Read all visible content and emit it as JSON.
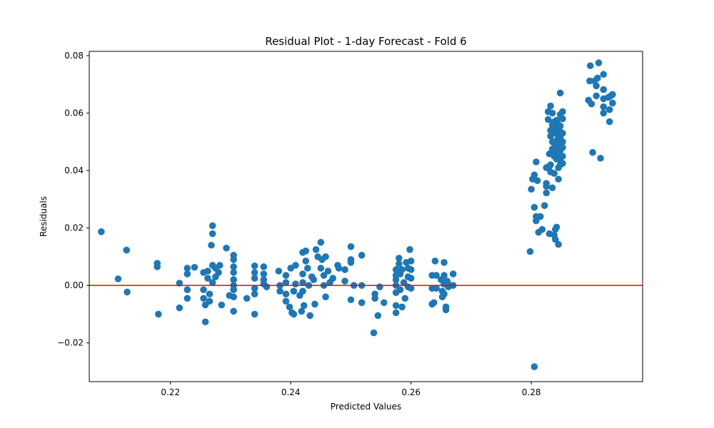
{
  "chart_data": {
    "type": "scatter",
    "title": "Residual Plot - 1-day Forecast - Fold 6",
    "xlabel": "Predicted Values",
    "ylabel": "Residuals",
    "xlim": [
      0.2065,
      0.2985
    ],
    "ylim": [
      -0.0335,
      0.0815
    ],
    "xticks": [
      0.22,
      0.24,
      0.26,
      0.28
    ],
    "yticks": [
      -0.02,
      0.0,
      0.02,
      0.04,
      0.06,
      0.08
    ],
    "grid": false,
    "reference_line": {
      "y": 0.0,
      "color": "#ff0000"
    },
    "marker_color": "#1f77b4",
    "points": [
      [
        0.2085,
        0.0187
      ],
      [
        0.2113,
        0.0023
      ],
      [
        0.2127,
        0.0123
      ],
      [
        0.2128,
        -0.0023
      ],
      [
        0.2178,
        0.0077
      ],
      [
        0.2178,
        0.0065
      ],
      [
        0.218,
        -0.01
      ],
      [
        0.2215,
        0.0008
      ],
      [
        0.2215,
        -0.0078
      ],
      [
        0.2228,
        0.006
      ],
      [
        0.2228,
        0.004
      ],
      [
        0.2228,
        -0.0015
      ],
      [
        0.2228,
        -0.0045
      ],
      [
        0.224,
        0.0063
      ],
      [
        0.2255,
        0.0045
      ],
      [
        0.2255,
        -0.0015
      ],
      [
        0.2255,
        -0.0045
      ],
      [
        0.2258,
        -0.0068
      ],
      [
        0.2258,
        -0.0127
      ],
      [
        0.2262,
        0.005
      ],
      [
        0.2262,
        0.0025
      ],
      [
        0.2265,
        -0.0055
      ],
      [
        0.2265,
        -0.003
      ],
      [
        0.2268,
        0.014
      ],
      [
        0.227,
        0.0208
      ],
      [
        0.227,
        0.018
      ],
      [
        0.227,
        0.007
      ],
      [
        0.227,
        0.001
      ],
      [
        0.2275,
        0.006
      ],
      [
        0.2275,
        0.003
      ],
      [
        0.228,
        0.0045
      ],
      [
        0.2282,
        0.007
      ],
      [
        0.2285,
        -0.0068
      ],
      [
        0.2293,
        0.013
      ],
      [
        0.2298,
        -0.0035
      ],
      [
        0.2305,
        0.0105
      ],
      [
        0.2305,
        0.009
      ],
      [
        0.2305,
        0.0065
      ],
      [
        0.2305,
        0.0045
      ],
      [
        0.2305,
        0.002
      ],
      [
        0.2305,
        0.0
      ],
      [
        0.2305,
        -0.0015
      ],
      [
        0.2305,
        -0.004
      ],
      [
        0.2305,
        -0.009
      ],
      [
        0.2327,
        -0.0045
      ],
      [
        0.234,
        0.0068
      ],
      [
        0.234,
        0.0045
      ],
      [
        0.234,
        0.0025
      ],
      [
        0.234,
        -0.001
      ],
      [
        0.234,
        -0.003
      ],
      [
        0.234,
        -0.01
      ],
      [
        0.2355,
        0.0065
      ],
      [
        0.2355,
        0.004
      ],
      [
        0.2355,
        0.002
      ],
      [
        0.2355,
        0.0005
      ],
      [
        0.236,
        -0.0005
      ],
      [
        0.238,
        0.005
      ],
      [
        0.2382,
        0.0
      ],
      [
        0.2382,
        -0.002
      ],
      [
        0.2392,
        0.0035
      ],
      [
        0.2392,
        0.001
      ],
      [
        0.2392,
        -0.003
      ],
      [
        0.2392,
        -0.0055
      ],
      [
        0.2398,
        -0.0075
      ],
      [
        0.24,
        0.006
      ],
      [
        0.2402,
        -0.0095
      ],
      [
        0.2405,
        -0.01
      ],
      [
        0.2405,
        -0.002
      ],
      [
        0.2408,
        0.007
      ],
      [
        0.2408,
        0.0005
      ],
      [
        0.2415,
        -0.0035
      ],
      [
        0.2418,
        -0.009
      ],
      [
        0.242,
        0.0115
      ],
      [
        0.242,
        0.004
      ],
      [
        0.242,
        0.001
      ],
      [
        0.242,
        -0.002
      ],
      [
        0.2422,
        -0.007
      ],
      [
        0.2425,
        0.012
      ],
      [
        0.2425,
        0.0085
      ],
      [
        0.2428,
        0.006
      ],
      [
        0.243,
        0.0
      ],
      [
        0.2432,
        -0.0105
      ],
      [
        0.2435,
        0.003
      ],
      [
        0.2438,
        0.002
      ],
      [
        0.244,
        -0.0065
      ],
      [
        0.2442,
        0.0125
      ],
      [
        0.2445,
        0.01
      ],
      [
        0.245,
        0.015
      ],
      [
        0.245,
        0.006
      ],
      [
        0.2452,
        0.009
      ],
      [
        0.2455,
        0.0035
      ],
      [
        0.2455,
        0.0
      ],
      [
        0.2458,
        0.01
      ],
      [
        0.2458,
        -0.004
      ],
      [
        0.2462,
        0.005
      ],
      [
        0.2465,
        0.001
      ],
      [
        0.247,
        0.0025
      ],
      [
        0.2478,
        0.007
      ],
      [
        0.248,
        0.006
      ],
      [
        0.249,
        0.0055
      ],
      [
        0.249,
        0.0015
      ],
      [
        0.25,
        0.0135
      ],
      [
        0.25,
        0.009
      ],
      [
        0.25,
        0.008
      ],
      [
        0.25,
        -0.005
      ],
      [
        0.2505,
        0.0
      ],
      [
        0.2518,
        0.0105
      ],
      [
        0.2518,
        0.0
      ],
      [
        0.2518,
        -0.006
      ],
      [
        0.2538,
        -0.0165
      ],
      [
        0.254,
        -0.003
      ],
      [
        0.254,
        -0.0045
      ],
      [
        0.2545,
        -0.0105
      ],
      [
        0.2548,
        -0.0005
      ],
      [
        0.2555,
        -0.006
      ],
      [
        0.2575,
        0.0055
      ],
      [
        0.2575,
        0.0035
      ],
      [
        0.2575,
        0.002
      ],
      [
        0.2575,
        0.0
      ],
      [
        0.2575,
        -0.0025
      ],
      [
        0.2575,
        -0.007
      ],
      [
        0.2575,
        -0.0095
      ],
      [
        0.258,
        0.0095
      ],
      [
        0.258,
        0.0075
      ],
      [
        0.2582,
        0.004
      ],
      [
        0.2582,
        -0.0015
      ],
      [
        0.2585,
        0.0055
      ],
      [
        0.2585,
        -0.0075
      ],
      [
        0.2588,
        0.001
      ],
      [
        0.259,
        -0.0045
      ],
      [
        0.2592,
        0.008
      ],
      [
        0.2595,
        0.006
      ],
      [
        0.2595,
        0.003
      ],
      [
        0.2595,
        -0.0005
      ],
      [
        0.2598,
        0.0125
      ],
      [
        0.26,
        0.0085
      ],
      [
        0.26,
        0.0055
      ],
      [
        0.26,
        0.0025
      ],
      [
        0.26,
        -0.001
      ],
      [
        0.2635,
        0.0035
      ],
      [
        0.2635,
        -0.001
      ],
      [
        0.2635,
        -0.0065
      ],
      [
        0.2638,
        -0.006
      ],
      [
        0.264,
        0.0085
      ],
      [
        0.2642,
        0.0035
      ],
      [
        0.2642,
        -0.001
      ],
      [
        0.265,
        0.002
      ],
      [
        0.2652,
        -0.002
      ],
      [
        0.2652,
        -0.004
      ],
      [
        0.2655,
        0.008
      ],
      [
        0.2655,
        0.0035
      ],
      [
        0.2655,
        0.0005
      ],
      [
        0.2655,
        -0.003
      ],
      [
        0.2658,
        -0.0075
      ],
      [
        0.2658,
        -0.0085
      ],
      [
        0.266,
        0.0015
      ],
      [
        0.2662,
        -0.0005
      ],
      [
        0.2665,
        0.0
      ],
      [
        0.267,
        0.004
      ],
      [
        0.267,
        0.0
      ],
      [
        0.2798,
        0.0118
      ],
      [
        0.28,
        0.0335
      ],
      [
        0.2802,
        0.037
      ],
      [
        0.2805,
        0.0385
      ],
      [
        0.2805,
        0.0272
      ],
      [
        0.2805,
        -0.0283
      ],
      [
        0.2808,
        0.043
      ],
      [
        0.2808,
        0.024
      ],
      [
        0.2808,
        0.0225
      ],
      [
        0.281,
        0.0365
      ],
      [
        0.2812,
        0.0185
      ],
      [
        0.2815,
        0.024
      ],
      [
        0.2818,
        0.0195
      ],
      [
        0.2822,
        0.0278
      ],
      [
        0.2825,
        0.041
      ],
      [
        0.2825,
        0.0355
      ],
      [
        0.2825,
        0.0345
      ],
      [
        0.2825,
        0.0322
      ],
      [
        0.2828,
        0.0605
      ],
      [
        0.2828,
        0.0578
      ],
      [
        0.283,
        0.0458
      ],
      [
        0.283,
        0.0415
      ],
      [
        0.283,
        0.018
      ],
      [
        0.2832,
        0.0625
      ],
      [
        0.2832,
        0.054
      ],
      [
        0.2832,
        0.052
      ],
      [
        0.2832,
        0.042
      ],
      [
        0.2832,
        0.0395
      ],
      [
        0.2835,
        0.06
      ],
      [
        0.2835,
        0.056
      ],
      [
        0.2835,
        0.05
      ],
      [
        0.2835,
        0.0475
      ],
      [
        0.2835,
        0.034
      ],
      [
        0.2838,
        0.057
      ],
      [
        0.2838,
        0.055
      ],
      [
        0.2838,
        0.045
      ],
      [
        0.2838,
        0.039
      ],
      [
        0.2838,
        0.0175
      ],
      [
        0.284,
        0.053
      ],
      [
        0.284,
        0.0485
      ],
      [
        0.284,
        0.0465
      ],
      [
        0.284,
        0.016
      ],
      [
        0.284,
        0.0195
      ],
      [
        0.2842,
        0.0575
      ],
      [
        0.2842,
        0.0545
      ],
      [
        0.2842,
        0.0505
      ],
      [
        0.2842,
        0.044
      ],
      [
        0.2842,
        0.0203
      ],
      [
        0.2845,
        0.056
      ],
      [
        0.2845,
        0.052
      ],
      [
        0.2845,
        0.049
      ],
      [
        0.2845,
        0.046
      ],
      [
        0.2845,
        0.041
      ],
      [
        0.2845,
        0.037
      ],
      [
        0.2845,
        0.0143
      ],
      [
        0.2848,
        0.0595
      ],
      [
        0.2848,
        0.067
      ],
      [
        0.2848,
        0.0555
      ],
      [
        0.2848,
        0.0535
      ],
      [
        0.2848,
        0.0515
      ],
      [
        0.2848,
        0.0495
      ],
      [
        0.2848,
        0.047
      ],
      [
        0.2848,
        0.0455
      ],
      [
        0.2848,
        0.044
      ],
      [
        0.2848,
        0.042
      ],
      [
        0.2852,
        0.0605
      ],
      [
        0.2852,
        0.058
      ],
      [
        0.2852,
        0.053
      ],
      [
        0.2852,
        0.05
      ],
      [
        0.2852,
        0.048
      ],
      [
        0.2852,
        0.045
      ],
      [
        0.2852,
        0.0425
      ],
      [
        0.2895,
        0.0645
      ],
      [
        0.2897,
        0.0712
      ],
      [
        0.2898,
        0.0765
      ],
      [
        0.29,
        0.0632
      ],
      [
        0.2902,
        0.0463
      ],
      [
        0.2905,
        0.0712
      ],
      [
        0.2908,
        0.0695
      ],
      [
        0.2908,
        0.066
      ],
      [
        0.291,
        0.0722
      ],
      [
        0.2912,
        0.0775
      ],
      [
        0.2915,
        0.0443
      ],
      [
        0.292,
        0.0735
      ],
      [
        0.292,
        0.0682
      ],
      [
        0.292,
        0.065
      ],
      [
        0.292,
        0.0622
      ],
      [
        0.292,
        0.06
      ],
      [
        0.2928,
        0.0655
      ],
      [
        0.293,
        0.0612
      ],
      [
        0.293,
        0.057
      ],
      [
        0.2932,
        0.066
      ],
      [
        0.2935,
        0.0635
      ],
      [
        0.2935,
        0.0665
      ]
    ]
  }
}
